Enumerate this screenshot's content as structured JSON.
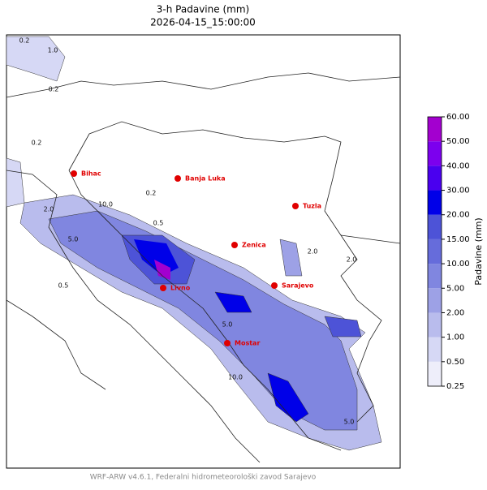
{
  "map": {
    "title": "3-h Padavine (mm)",
    "subtitle": "2026-04-15_15:00:00",
    "cities": [
      "Bihac",
      "Banja Luka",
      "Tuzla",
      "Zenica",
      "Sarajevo",
      "Livno",
      "Mostar"
    ],
    "contour_labels": [
      "0.2",
      "0.2",
      "0.2",
      "0.2",
      "1.0",
      "2.0",
      "5.0",
      "10.0",
      "0.5",
      "5.0",
      "10.0",
      "5.0",
      "2.0",
      "0.5",
      "2.0"
    ],
    "colorbar": {
      "label": "Padavine (mm)",
      "ticks": [
        {
          "value": 0.25,
          "label": "0.25"
        },
        {
          "value": 0.5,
          "label": "0.50"
        },
        {
          "value": 1,
          "label": "1.00"
        },
        {
          "value": 2,
          "label": "2.00"
        },
        {
          "value": 5,
          "label": "5.00"
        },
        {
          "value": 10,
          "label": "10.00"
        },
        {
          "value": 15,
          "label": "15.00"
        },
        {
          "value": 20,
          "label": "20.00"
        },
        {
          "value": 30,
          "label": "30.00"
        },
        {
          "value": 40,
          "label": "40.00"
        },
        {
          "value": 50,
          "label": "50.00"
        },
        {
          "value": 60,
          "label": "60.00"
        }
      ],
      "colors": [
        "#eeeefa",
        "#d6d8f5",
        "#b9bced",
        "#9da1e6",
        "#8086e0",
        "#666cdb",
        "#4d53d7",
        "#0000e8",
        "#4a00ef",
        "#7c00ee",
        "#a300cf"
      ]
    },
    "footer": "WRF-ARW v4.6.1, Federalni hidrometeorološki zavod Sarajevo"
  }
}
